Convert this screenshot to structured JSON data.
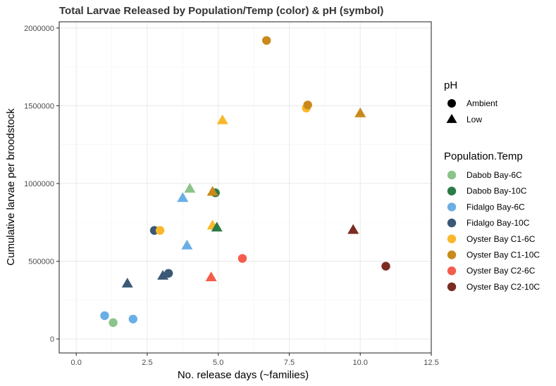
{
  "chart_data": {
    "type": "scatter",
    "title": "Total Larvae Released by Population/Temp (color) & pH (symbol)",
    "xlabel": "No. release days (~families)",
    "ylabel": "Cumulative larvae per broodstock",
    "xlim": [
      -0.6,
      12.5
    ],
    "ylim": [
      -90000,
      2040000
    ],
    "x_ticks": [
      0,
      2.5,
      5,
      7.5,
      10,
      12.5
    ],
    "x_tick_labels": [
      "0.0",
      "2.5",
      "5.0",
      "7.5",
      "10.0",
      "12.5"
    ],
    "y_ticks": [
      0,
      500000,
      1000000,
      1500000,
      2000000
    ],
    "y_tick_labels": [
      "0",
      "500000",
      "1000000",
      "1500000",
      "2000000"
    ],
    "grid": true,
    "legend_position": "right",
    "shape_legend": {
      "title": "pH",
      "entries": [
        {
          "label": "Ambient",
          "shape": "circle"
        },
        {
          "label": "Low",
          "shape": "triangle"
        }
      ]
    },
    "color_legend": {
      "title": "Population.Temp",
      "entries": [
        {
          "label": "Dabob Bay-6C",
          "color": "#8bc48a"
        },
        {
          "label": "Dabob Bay-10C",
          "color": "#2a7b45"
        },
        {
          "label": "Fidalgo Bay-6C",
          "color": "#6aaee6"
        },
        {
          "label": "Fidalgo Bay-10C",
          "color": "#3b5876"
        },
        {
          "label": "Oyster Bay C1-6C",
          "color": "#f9b72a"
        },
        {
          "label": "Oyster Bay C1-10C",
          "color": "#c88a1b"
        },
        {
          "label": "Oyster Bay C2-6C",
          "color": "#f45c4b"
        },
        {
          "label": "Oyster Bay C2-10C",
          "color": "#7b2b22"
        }
      ]
    },
    "points": [
      {
        "x": 6.7,
        "y": 1920000,
        "group": "Oyster Bay C1-10C",
        "ph": "Ambient"
      },
      {
        "x": 8.1,
        "y": 1485000,
        "group": "Oyster Bay C1-6C",
        "ph": "Ambient"
      },
      {
        "x": 8.15,
        "y": 1505000,
        "group": "Oyster Bay C1-10C",
        "ph": "Ambient"
      },
      {
        "x": 10.0,
        "y": 1450000,
        "group": "Oyster Bay C1-10C",
        "ph": "Low"
      },
      {
        "x": 5.15,
        "y": 1405000,
        "group": "Oyster Bay C1-6C",
        "ph": "Low"
      },
      {
        "x": 4.0,
        "y": 965000,
        "group": "Dabob Bay-6C",
        "ph": "Low"
      },
      {
        "x": 4.9,
        "y": 940000,
        "group": "Dabob Bay-10C",
        "ph": "Ambient"
      },
      {
        "x": 4.8,
        "y": 945000,
        "group": "Oyster Bay C1-10C",
        "ph": "Low"
      },
      {
        "x": 3.75,
        "y": 905000,
        "group": "Fidalgo Bay-6C",
        "ph": "Low"
      },
      {
        "x": 4.8,
        "y": 728000,
        "group": "Oyster Bay C1-6C",
        "ph": "Low"
      },
      {
        "x": 4.95,
        "y": 715000,
        "group": "Dabob Bay-10C",
        "ph": "Low"
      },
      {
        "x": 2.75,
        "y": 698000,
        "group": "Fidalgo Bay-10C",
        "ph": "Ambient"
      },
      {
        "x": 2.95,
        "y": 698000,
        "group": "Oyster Bay C1-6C",
        "ph": "Ambient"
      },
      {
        "x": 9.75,
        "y": 700000,
        "group": "Oyster Bay C2-10C",
        "ph": "Low"
      },
      {
        "x": 3.9,
        "y": 600000,
        "group": "Fidalgo Bay-6C",
        "ph": "Low"
      },
      {
        "x": 5.85,
        "y": 518000,
        "group": "Oyster Bay C2-6C",
        "ph": "Ambient"
      },
      {
        "x": 10.9,
        "y": 468000,
        "group": "Oyster Bay C2-10C",
        "ph": "Ambient"
      },
      {
        "x": 3.25,
        "y": 422000,
        "group": "Fidalgo Bay-10C",
        "ph": "Ambient"
      },
      {
        "x": 3.05,
        "y": 405000,
        "group": "Fidalgo Bay-10C",
        "ph": "Low"
      },
      {
        "x": 4.75,
        "y": 395000,
        "group": "Oyster Bay C2-6C",
        "ph": "Low"
      },
      {
        "x": 1.8,
        "y": 355000,
        "group": "Fidalgo Bay-10C",
        "ph": "Low"
      },
      {
        "x": 1.0,
        "y": 150000,
        "group": "Fidalgo Bay-6C",
        "ph": "Ambient"
      },
      {
        "x": 2.0,
        "y": 128000,
        "group": "Fidalgo Bay-6C",
        "ph": "Ambient"
      },
      {
        "x": 1.3,
        "y": 105000,
        "group": "Dabob Bay-6C",
        "ph": "Ambient"
      }
    ]
  }
}
